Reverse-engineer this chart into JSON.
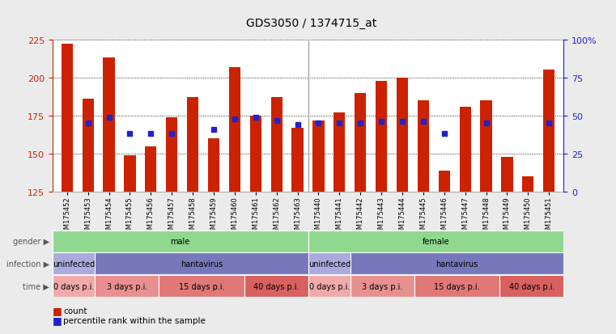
{
  "title": "GDS3050 / 1374715_at",
  "samples": [
    "GSM175452",
    "GSM175453",
    "GSM175454",
    "GSM175455",
    "GSM175456",
    "GSM175457",
    "GSM175458",
    "GSM175459",
    "GSM175460",
    "GSM175461",
    "GSM175462",
    "GSM175463",
    "GSM175440",
    "GSM175441",
    "GSM175442",
    "GSM175443",
    "GSM175444",
    "GSM175445",
    "GSM175446",
    "GSM175447",
    "GSM175448",
    "GSM175449",
    "GSM175450",
    "GSM175451"
  ],
  "counts": [
    222,
    186,
    213,
    149,
    155,
    174,
    187,
    160,
    207,
    175,
    187,
    167,
    172,
    177,
    190,
    198,
    200,
    185,
    139,
    181,
    185,
    148,
    135,
    205
  ],
  "percentiles": [
    null,
    170,
    174,
    163,
    163,
    163,
    null,
    166,
    173,
    174,
    172,
    169,
    170,
    170,
    170,
    171,
    171,
    171,
    163,
    null,
    170,
    null,
    null,
    170
  ],
  "ylim_left": [
    125,
    225
  ],
  "ylim_right": [
    0,
    100
  ],
  "yticks_left": [
    125,
    150,
    175,
    200,
    225
  ],
  "yticks_right": [
    0,
    25,
    50,
    75,
    100
  ],
  "bar_color": "#CC2200",
  "dot_color": "#2222CC",
  "bar_width": 0.55,
  "infection_row": {
    "segments": [
      {
        "label": "uninfected",
        "span": [
          0,
          2
        ],
        "color": "#AAAADD"
      },
      {
        "label": "hantavirus",
        "span": [
          2,
          12
        ],
        "color": "#7777BB"
      },
      {
        "label": "uninfected",
        "span": [
          12,
          14
        ],
        "color": "#AAAADD"
      },
      {
        "label": "hantavirus",
        "span": [
          14,
          24
        ],
        "color": "#7777BB"
      }
    ]
  },
  "time_row": {
    "segments": [
      {
        "label": "0 days p.i.",
        "span": [
          0,
          2
        ],
        "color": "#F0AAAA"
      },
      {
        "label": "3 days p.i.",
        "span": [
          2,
          5
        ],
        "color": "#E89090"
      },
      {
        "label": "15 days p.i.",
        "span": [
          5,
          9
        ],
        "color": "#E07878"
      },
      {
        "label": "40 days p.i.",
        "span": [
          9,
          12
        ],
        "color": "#D86060"
      },
      {
        "label": "0 days p.i.",
        "span": [
          12,
          14
        ],
        "color": "#F0AAAA"
      },
      {
        "label": "3 days p.i.",
        "span": [
          14,
          17
        ],
        "color": "#E89090"
      },
      {
        "label": "15 days p.i.",
        "span": [
          17,
          21
        ],
        "color": "#E07878"
      },
      {
        "label": "40 days p.i.",
        "span": [
          21,
          24
        ],
        "color": "#D86060"
      }
    ]
  },
  "row_label_color": "#555555",
  "bg_color": "#EBEBEB",
  "plot_bg": "#FFFFFF",
  "axis_color_left": "#CC2200",
  "axis_color_right": "#2222CC"
}
